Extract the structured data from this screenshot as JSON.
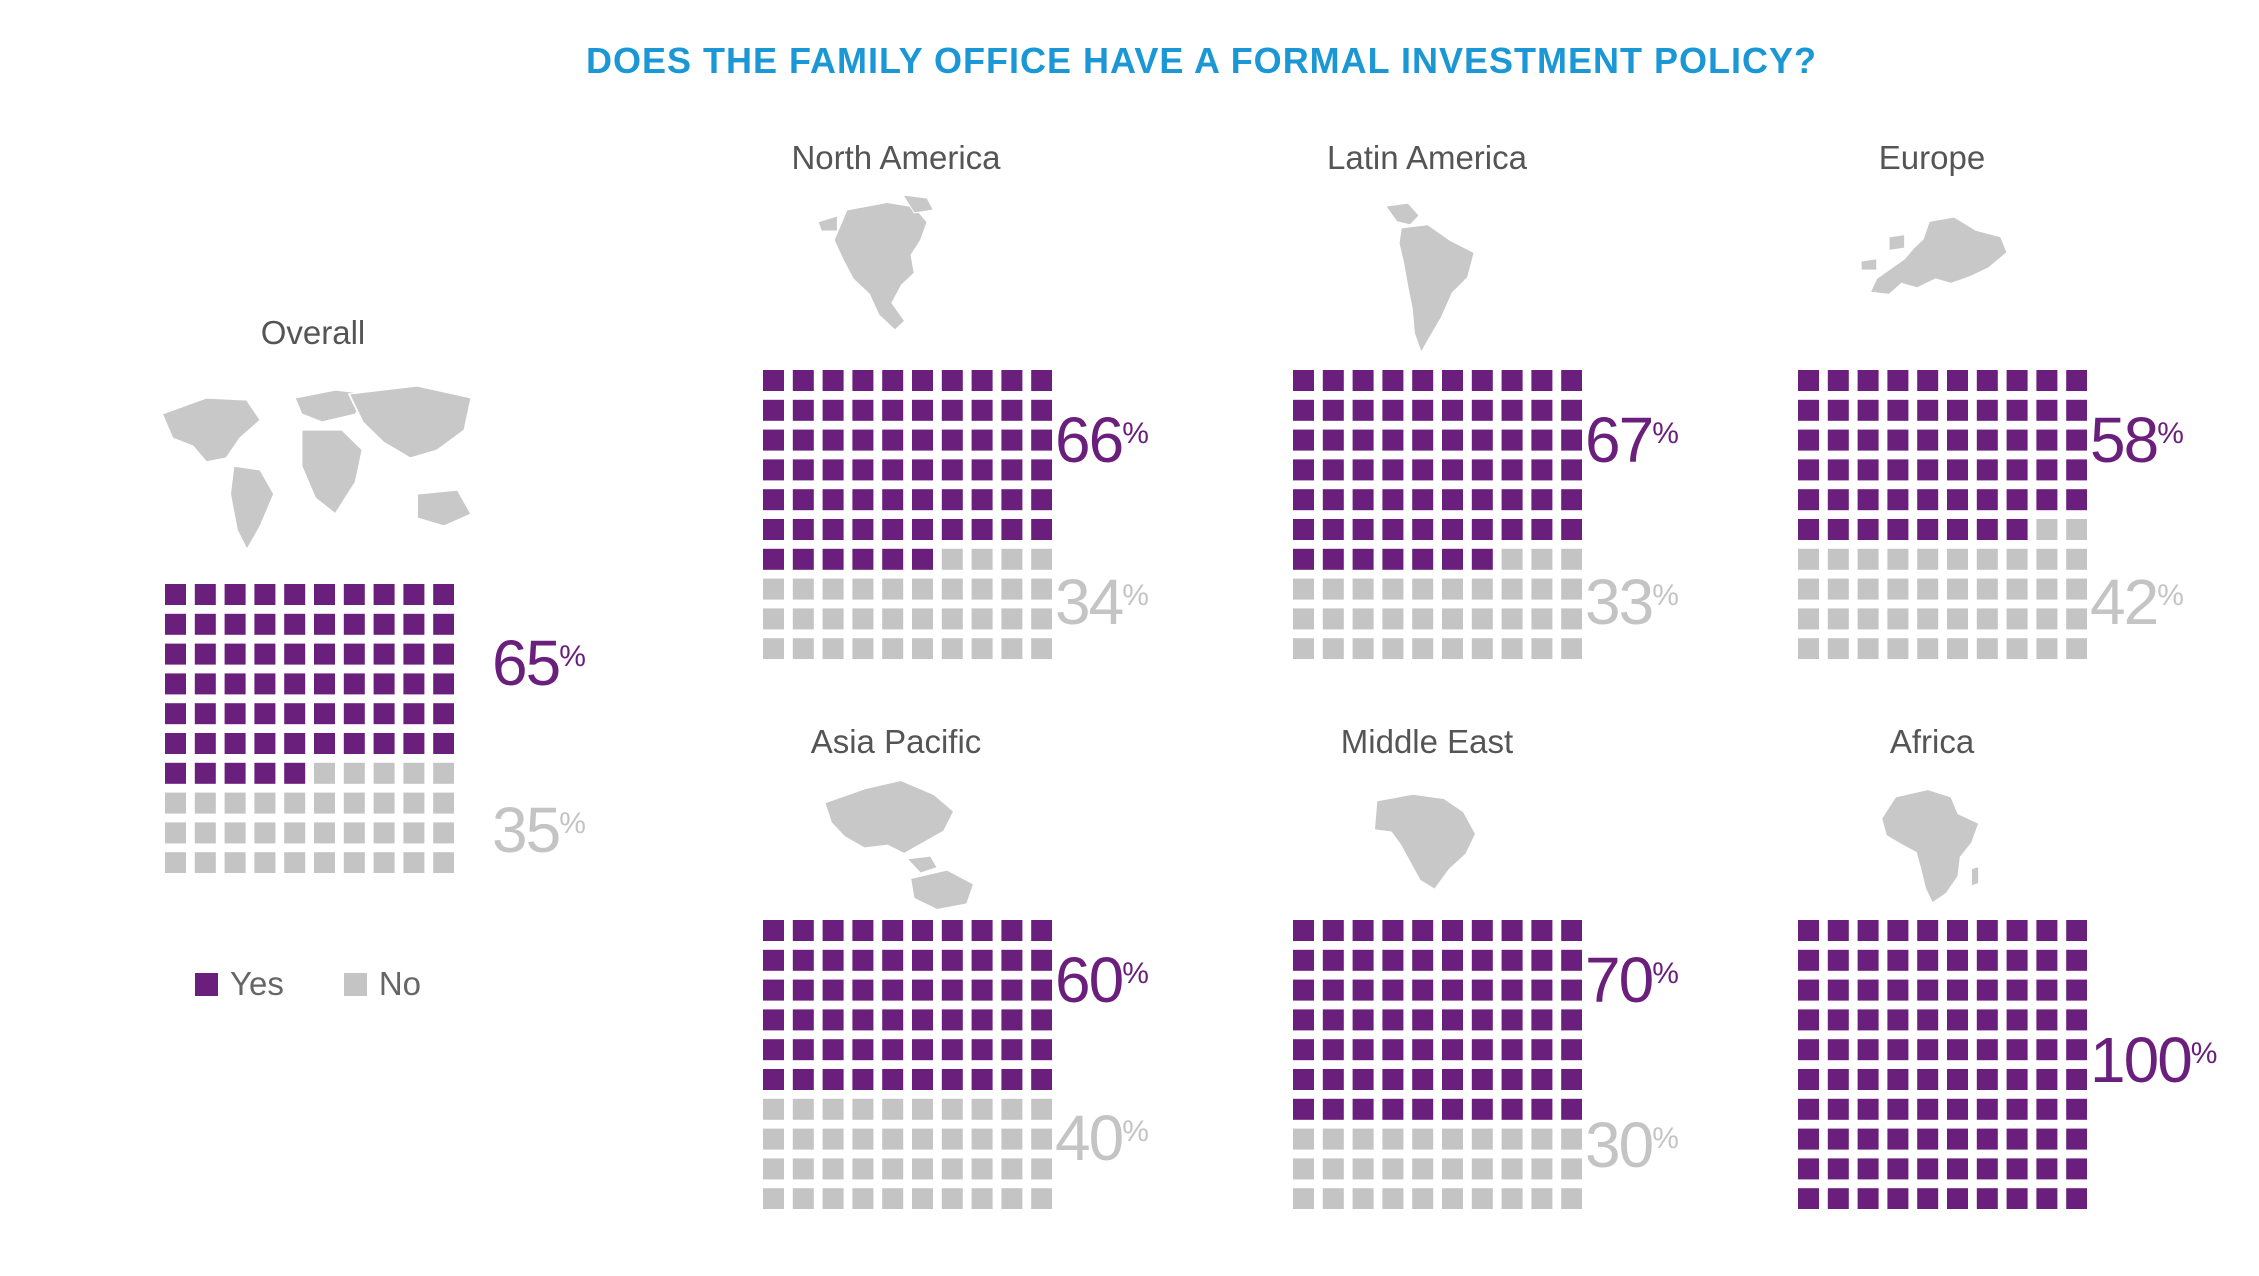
{
  "title": "DOES THE FAMILY OFFICE HAVE A FORMAL INVESTMENT POLICY?",
  "colors": {
    "yes": "#6b1f7c",
    "no": "#c4c4c4",
    "title": "#1a97d4",
    "map": "#c8c8c8"
  },
  "legend": {
    "yes_label": "Yes",
    "no_label": "No"
  },
  "percent_symbol": "%",
  "chart_data": [
    {
      "type": "waffle",
      "region": "Overall",
      "map_icon": "world-map-icon",
      "yes": 65,
      "no": 35,
      "yes_label": "65",
      "no_label": "35"
    },
    {
      "type": "waffle",
      "region": "North America",
      "map_icon": "north-america-map-icon",
      "yes": 66,
      "no": 34,
      "yes_label": "66",
      "no_label": "34"
    },
    {
      "type": "waffle",
      "region": "Latin America",
      "map_icon": "latin-america-map-icon",
      "yes": 67,
      "no": 33,
      "yes_label": "67",
      "no_label": "33"
    },
    {
      "type": "waffle",
      "region": "Europe",
      "map_icon": "europe-map-icon",
      "yes": 58,
      "no": 42,
      "yes_label": "58",
      "no_label": "42"
    },
    {
      "type": "waffle",
      "region": "Asia Pacific",
      "map_icon": "asia-pacific-map-icon",
      "yes": 60,
      "no": 40,
      "yes_label": "60",
      "no_label": "40"
    },
    {
      "type": "waffle",
      "region": "Middle East",
      "map_icon": "middle-east-map-icon",
      "yes": 70,
      "no": 30,
      "yes_label": "70",
      "no_label": "30"
    },
    {
      "type": "waffle",
      "region": "Africa",
      "map_icon": "africa-map-icon",
      "yes": 100,
      "no": 0,
      "yes_label": "100",
      "no_label": ""
    }
  ]
}
